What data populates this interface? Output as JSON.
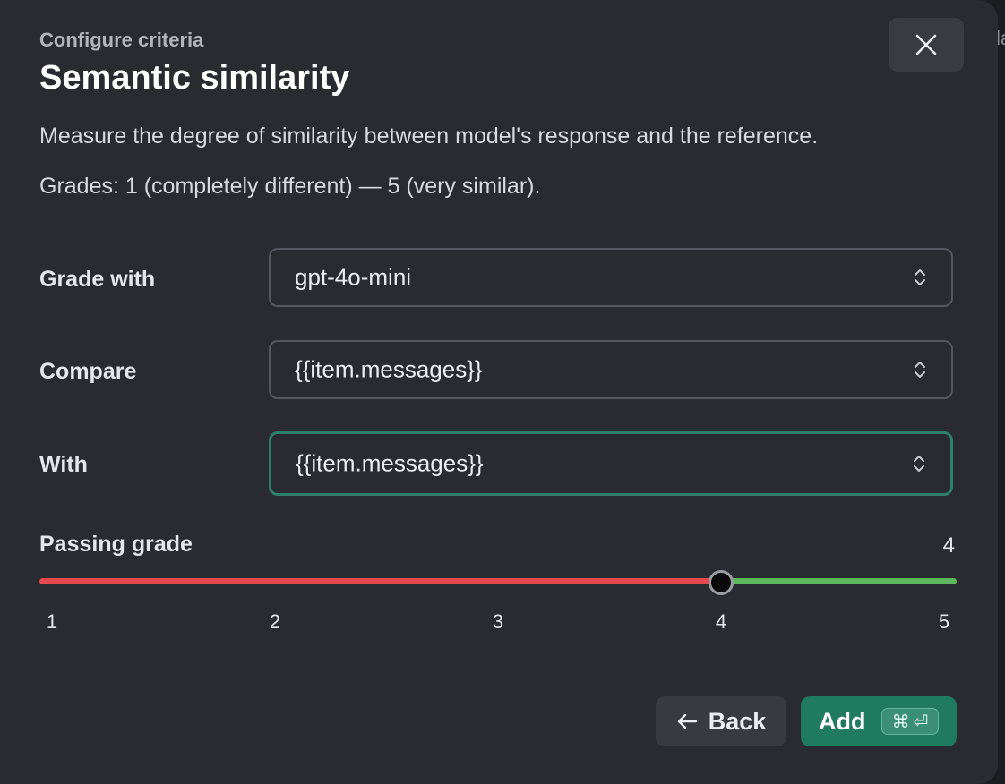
{
  "backdrop": {
    "peek_text": "la"
  },
  "dialog": {
    "eyebrow": "Configure criteria",
    "title": "Semantic similarity",
    "description": "Measure the degree of similarity between model's response and the reference.",
    "grades_note": "Grades: 1 (completely different) — 5 (very similar)."
  },
  "form": {
    "grade_with": {
      "label": "Grade with",
      "value": "gpt-4o-mini"
    },
    "compare": {
      "label": "Compare",
      "value": "{{item.messages}}"
    },
    "with": {
      "label": "With",
      "value": "{{item.messages}}"
    }
  },
  "passing_grade": {
    "label": "Passing grade",
    "value": 4,
    "value_text": "4",
    "min": 1,
    "max": 5,
    "ticks": [
      "1",
      "2",
      "3",
      "4",
      "5"
    ]
  },
  "footer": {
    "back_label": "Back",
    "add_label": "Add",
    "add_shortcut": [
      "⌘",
      "⏎"
    ]
  },
  "icons": {
    "close": "close-icon",
    "chevron": "chevron-up-down-icon",
    "back_arrow": "arrow-left-icon",
    "command_key": "command-icon",
    "enter_key": "enter-icon"
  },
  "colors": {
    "modal_bg": "#2a2b30",
    "track_fail": "#e5484d",
    "track_pass": "#5cb85c",
    "primary_button": "#1f7a5e",
    "focus_border": "#2d7f6a"
  }
}
